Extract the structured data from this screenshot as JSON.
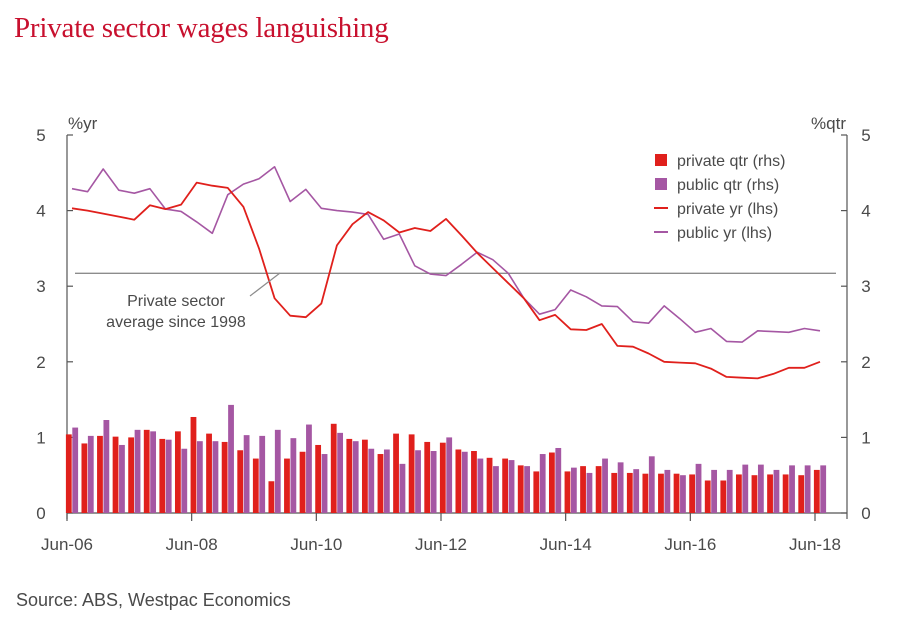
{
  "title": "Private sector wages languishing",
  "source": "Source: ABS, Westpac Economics",
  "colors": {
    "private": "#e0201c",
    "public": "#a557a3",
    "axis": "#555555",
    "avg": "#8c8c8c",
    "title": "#c8102e"
  },
  "chart_data": {
    "type": "bar+line",
    "left_axis": {
      "unit": "%yr",
      "ticks": [
        "0",
        "1",
        "2",
        "3",
        "4",
        "5"
      ],
      "ylim": [
        0,
        5
      ]
    },
    "right_axis": {
      "unit": "%qtr",
      "ticks": [
        "0",
        "1",
        "2",
        "3",
        "4",
        "5"
      ],
      "ylim": [
        0,
        5
      ]
    },
    "x_ticks": [
      "Jun-06",
      "Jun-08",
      "Jun-10",
      "Jun-12",
      "Jun-14",
      "Jun-16",
      "Jun-18"
    ],
    "quarters": 49,
    "legend": [
      "private qtr (rhs)",
      "public qtr (rhs)",
      "private yr (lhs)",
      "public yr (lhs)"
    ],
    "annotation": [
      "Private sector",
      "average since 1998"
    ],
    "average_line": 3.17,
    "series": [
      {
        "name": "private qtr (rhs)",
        "type": "bar",
        "axis": "right",
        "values": [
          1.04,
          0.92,
          1.02,
          1.01,
          1.0,
          1.1,
          0.98,
          1.08,
          1.27,
          1.05,
          0.94,
          0.83,
          0.72,
          0.42,
          0.72,
          0.81,
          0.9,
          1.18,
          0.98,
          0.97,
          0.78,
          1.05,
          1.04,
          0.94,
          0.93,
          0.84,
          0.82,
          0.73,
          0.72,
          0.63,
          0.55,
          0.8,
          0.55,
          0.62,
          0.62,
          0.53,
          0.53,
          0.52,
          0.52,
          0.52,
          0.51,
          0.43,
          0.43,
          0.51,
          0.5,
          0.51,
          0.51,
          0.5,
          0.57
        ]
      },
      {
        "name": "public qtr (rhs)",
        "type": "bar",
        "axis": "right",
        "values": [
          1.13,
          1.02,
          1.23,
          0.9,
          1.1,
          1.08,
          0.97,
          0.85,
          0.95,
          0.95,
          1.43,
          1.03,
          1.02,
          1.1,
          0.99,
          1.17,
          0.78,
          1.06,
          0.95,
          0.85,
          0.84,
          0.65,
          0.83,
          0.82,
          1.0,
          0.81,
          0.72,
          0.62,
          0.7,
          0.62,
          0.78,
          0.86,
          0.6,
          0.53,
          0.72,
          0.67,
          0.58,
          0.75,
          0.57,
          0.5,
          0.65,
          0.57,
          0.57,
          0.64,
          0.64,
          0.57,
          0.63,
          0.63,
          0.63
        ]
      },
      {
        "name": "private yr (lhs)",
        "type": "line",
        "axis": "left",
        "values": [
          4.03,
          4.0,
          3.96,
          3.92,
          3.88,
          4.07,
          4.02,
          4.08,
          4.37,
          4.33,
          4.3,
          4.05,
          3.5,
          2.84,
          2.61,
          2.59,
          2.77,
          3.54,
          3.82,
          3.98,
          3.87,
          3.71,
          3.77,
          3.73,
          3.89,
          3.67,
          3.44,
          3.24,
          3.04,
          2.84,
          2.55,
          2.62,
          2.43,
          2.42,
          2.5,
          2.21,
          2.2,
          2.11,
          2.0,
          1.99,
          1.98,
          1.91,
          1.8,
          1.79,
          1.78,
          1.84,
          1.92,
          1.92,
          2.0
        ]
      },
      {
        "name": "public yr (lhs)",
        "type": "line",
        "axis": "left",
        "values": [
          4.29,
          4.25,
          4.55,
          4.27,
          4.23,
          4.29,
          4.02,
          3.99,
          3.85,
          3.7,
          4.21,
          4.35,
          4.42,
          4.58,
          4.12,
          4.28,
          4.03,
          4.0,
          3.98,
          3.95,
          3.62,
          3.69,
          3.27,
          3.16,
          3.14,
          3.29,
          3.45,
          3.35,
          3.17,
          2.84,
          2.63,
          2.69,
          2.95,
          2.86,
          2.74,
          2.73,
          2.53,
          2.51,
          2.74,
          2.57,
          2.39,
          2.44,
          2.27,
          2.26,
          2.41,
          2.4,
          2.39,
          2.44,
          2.41
        ]
      }
    ]
  }
}
